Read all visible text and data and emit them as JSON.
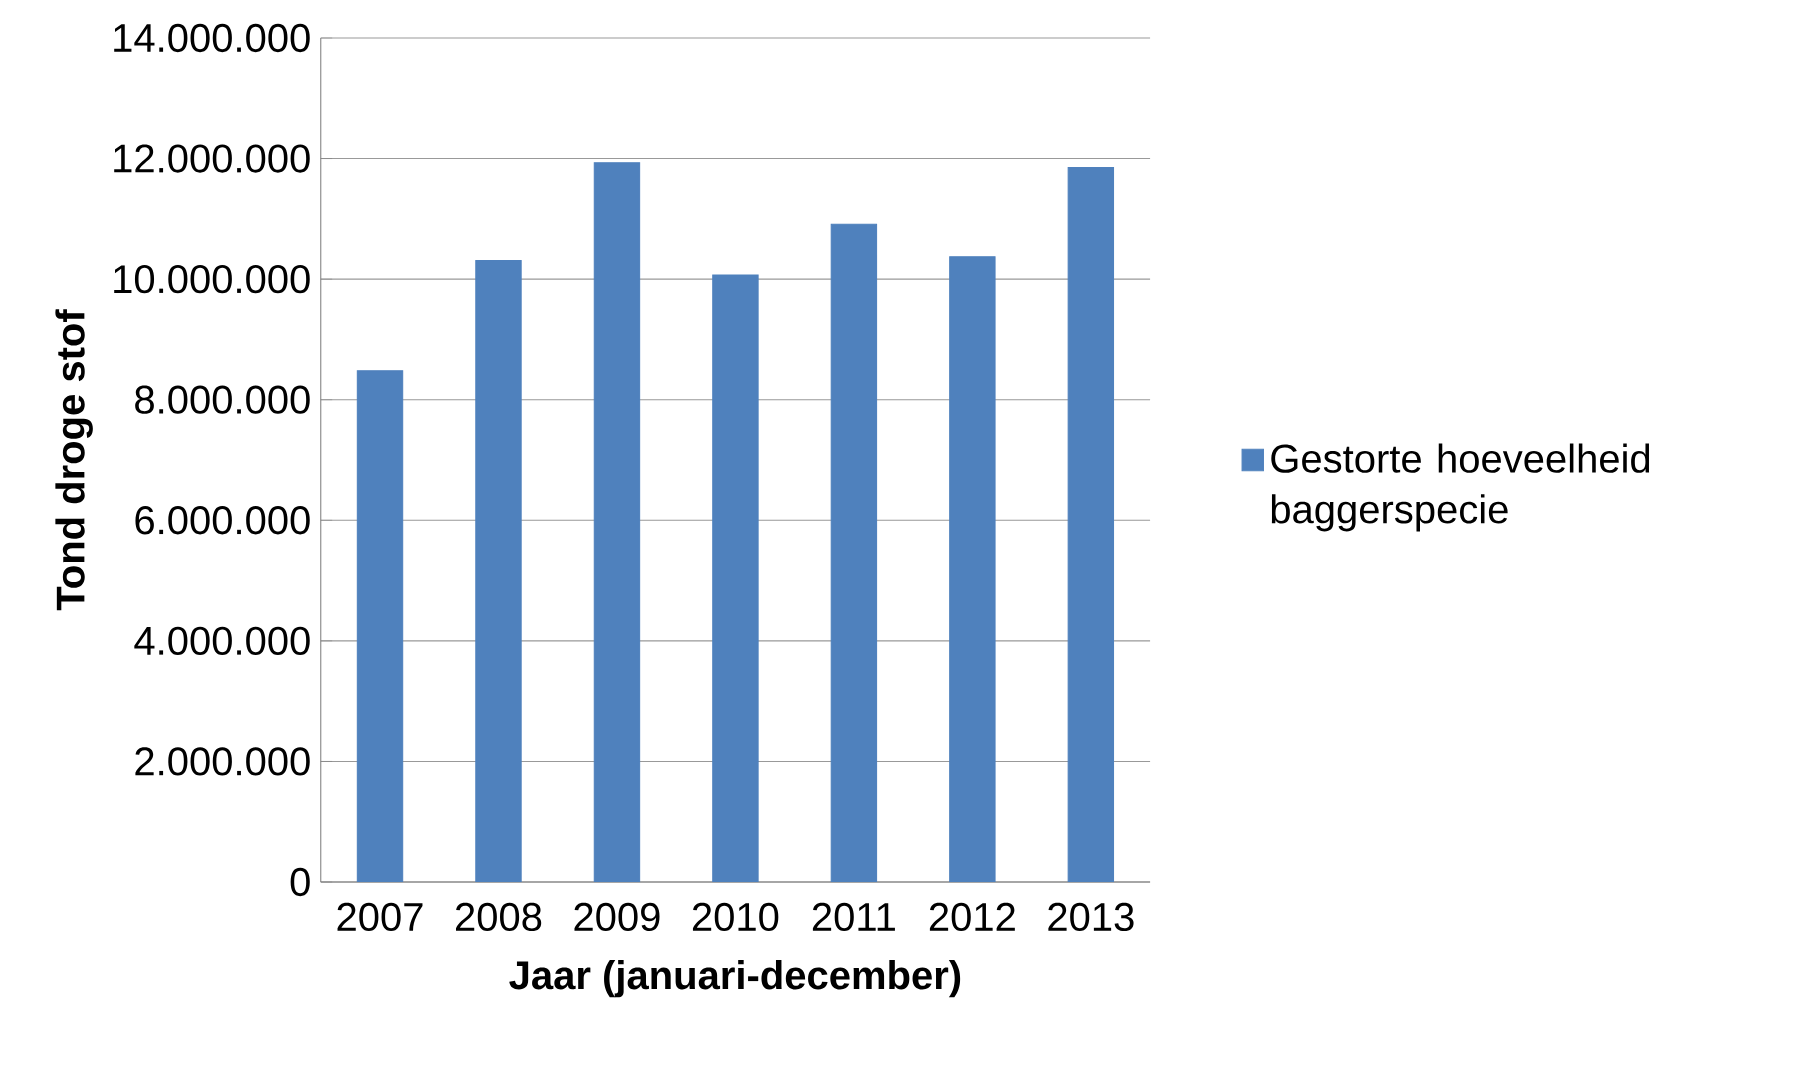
{
  "chart_data": {
    "type": "bar",
    "xlabel": "Jaar (januari-december)",
    "ylabel": "Tond droge stof",
    "categories": [
      "2007",
      "2008",
      "2009",
      "2010",
      "2011",
      "2012",
      "2013"
    ],
    "series": [
      {
        "name": "Gestorte hoeveelheid baggerspecie",
        "color": "#4f81bd",
        "values": [
          8480000,
          10310000,
          11930000,
          10070000,
          10910000,
          10370000,
          11850000
        ]
      }
    ],
    "ylim": [
      0,
      14000000
    ],
    "yticks": [
      {
        "value": 0,
        "label": "0"
      },
      {
        "value": 2000000,
        "label": "2.000.000"
      },
      {
        "value": 4000000,
        "label": "4.000.000"
      },
      {
        "value": 6000000,
        "label": "6.000.000"
      },
      {
        "value": 8000000,
        "label": "8.000.000"
      },
      {
        "value": 10000000,
        "label": "10.000.000"
      },
      {
        "value": 12000000,
        "label": "12.000.000"
      },
      {
        "value": 14000000,
        "label": "14.000.000"
      }
    ],
    "grid": "y",
    "legend": "right"
  }
}
